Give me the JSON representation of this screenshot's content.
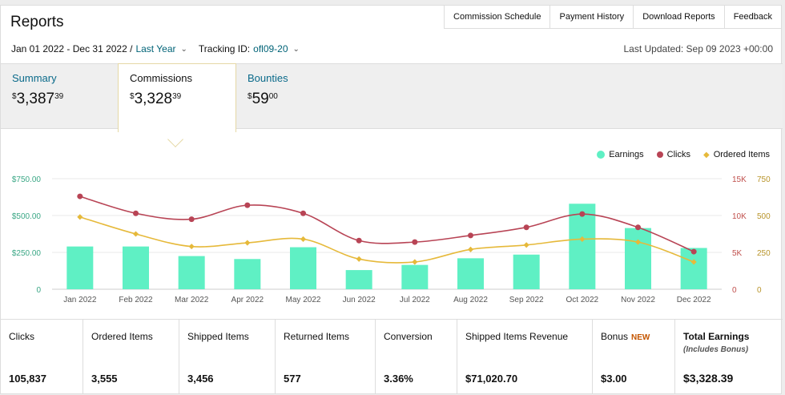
{
  "header": {
    "title": "Reports"
  },
  "toplinks": [
    "Commission Schedule",
    "Payment History",
    "Download Reports",
    "Feedback"
  ],
  "filters": {
    "date_range": "Jan 01 2022 - Dec 31 2022 /",
    "date_preset": "Last Year",
    "tracking_label": "Tracking ID:",
    "tracking_id": "ofl09-20",
    "last_updated": "Last Updated: Sep 09 2023 +00:00"
  },
  "tabs": [
    {
      "label": "Summary",
      "dollars": "3,387",
      "cents": "39"
    },
    {
      "label": "Commissions",
      "dollars": "3,328",
      "cents": "39"
    },
    {
      "label": "Bounties",
      "dollars": "59",
      "cents": "00"
    }
  ],
  "legend": {
    "earnings": "Earnings",
    "clicks": "Clicks",
    "ordered": "Ordered Items"
  },
  "colors": {
    "earnings": "#5ff0c4",
    "clicks": "#b84455",
    "ordered": "#e6b93a",
    "link": "#006377"
  },
  "chart_data": {
    "type": "bar",
    "categories": [
      "Jan 2022",
      "Feb 2022",
      "Mar 2022",
      "Apr 2022",
      "May 2022",
      "Jun 2022",
      "Jul 2022",
      "Aug 2022",
      "Sep 2022",
      "Oct 2022",
      "Nov 2022",
      "Dec 2022"
    ],
    "series": [
      {
        "name": "Earnings",
        "type": "bar",
        "axis": "left",
        "values": [
          290,
          290,
          225,
          205,
          285,
          130,
          165,
          210,
          235,
          580,
          415,
          280
        ]
      },
      {
        "name": "Clicks",
        "type": "line",
        "axis": "right1",
        "values": [
          12600,
          10300,
          9500,
          11400,
          10300,
          6600,
          6400,
          7300,
          8400,
          10200,
          8400,
          5100
        ]
      },
      {
        "name": "Ordered Items",
        "type": "line",
        "axis": "right2",
        "values": [
          490,
          375,
          290,
          315,
          340,
          205,
          185,
          270,
          300,
          340,
          320,
          185
        ]
      }
    ],
    "left_ticks": [
      "0",
      "$250.00",
      "$500.00",
      "$750.00"
    ],
    "right1_ticks": [
      "0",
      "5K",
      "10K",
      "15K"
    ],
    "right2_ticks": [
      "0",
      "250",
      "500",
      "750"
    ],
    "ylim_left": [
      0,
      750
    ],
    "ylim_right1": [
      0,
      15000
    ],
    "ylim_right2": [
      0,
      750
    ]
  },
  "stats": [
    {
      "label": "Clicks",
      "value": "105,837"
    },
    {
      "label": "Ordered Items",
      "value": "3,555"
    },
    {
      "label": "Shipped Items",
      "value": "3,456"
    },
    {
      "label": "Returned Items",
      "value": "577"
    },
    {
      "label": "Conversion",
      "value": "3.36%"
    },
    {
      "label": "Shipped Items Revenue",
      "value": "$71,020.70"
    },
    {
      "label": "Bonus",
      "badge": "NEW",
      "value": "$3.00"
    },
    {
      "label": "Total Earnings",
      "sub": "(Includes Bonus)",
      "value": "$3,328.39"
    }
  ]
}
